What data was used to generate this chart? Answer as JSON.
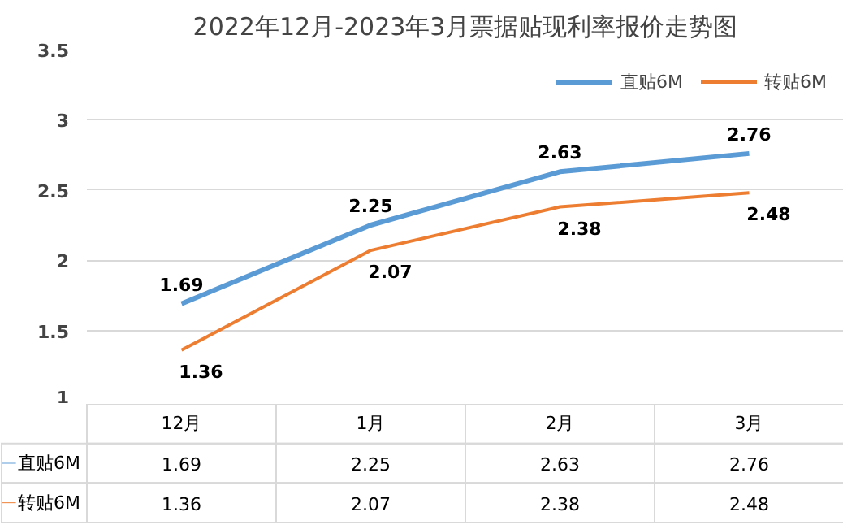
{
  "chart_data": {
    "type": "line",
    "title": "2022年12月-2023年3月票据贴现利率报价走势图",
    "categories": [
      "12月",
      "1月",
      "2月",
      "3月"
    ],
    "series": [
      {
        "name": "直贴6M",
        "color": "#5b9bd5",
        "values": [
          1.69,
          2.25,
          2.63,
          2.76
        ],
        "value_labels": [
          "1.69",
          "2.25",
          "2.63",
          "2.76"
        ]
      },
      {
        "name": "转贴6M",
        "color": "#ed7d31",
        "values": [
          1.36,
          2.07,
          2.38,
          2.48
        ],
        "value_labels": [
          "1.36",
          "2.07",
          "2.38",
          "2.48"
        ]
      }
    ],
    "ylim": [
      1,
      3.5
    ],
    "yticks": [
      1,
      1.5,
      2,
      2.5,
      3,
      3.5
    ],
    "grid": "y",
    "legend": "top right",
    "annotations": [
      "1.69",
      "2.25",
      "2.63",
      "2.76",
      "1.36",
      "2.07",
      "2.38",
      "2.48"
    ],
    "marker": "none",
    "line_style": "solid"
  }
}
